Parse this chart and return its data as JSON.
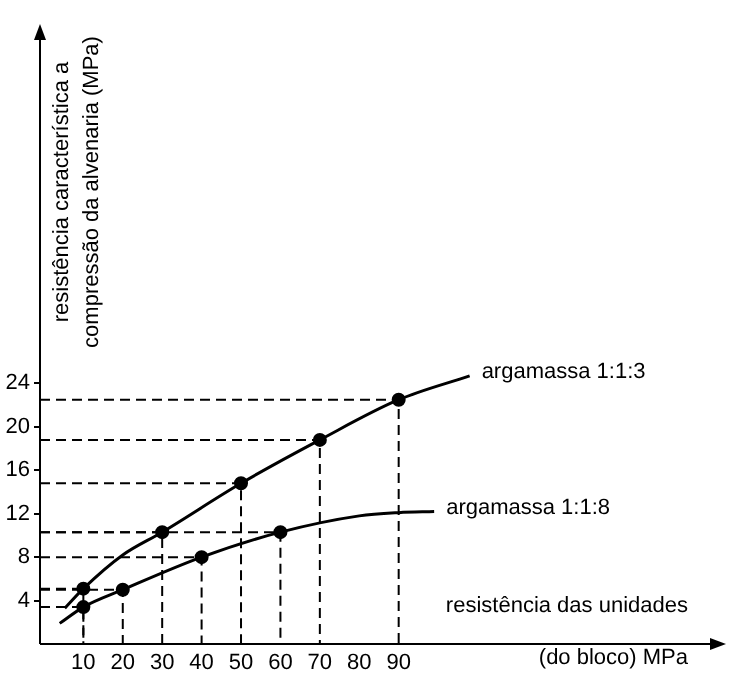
{
  "chart_data": {
    "type": "line",
    "xlabel": "resistência das unidades (do bloco) MPa",
    "ylabel": "resistência característica a compressão da alvenaria (MPa)",
    "xlim": [
      -1,
      170
    ],
    "ylim": [
      0,
      56
    ],
    "xticks": [
      10,
      20,
      30,
      40,
      50,
      60,
      70,
      80,
      90
    ],
    "yticks": [
      4,
      8,
      12,
      16,
      20,
      24
    ],
    "grid": false,
    "legend": false,
    "series": [
      {
        "name": "argamassa 1:1:3",
        "color": "#000000",
        "marker": "none",
        "x": [
          5.3,
          10,
          20,
          30,
          50,
          70,
          90,
          108
        ],
        "values": [
          3.3,
          5.1,
          8.2,
          10.3,
          14.8,
          18.8,
          22.5,
          24.7
        ]
      },
      {
        "name": "argamassa 1:1:8",
        "color": "#000000",
        "marker": "none",
        "x": [
          4,
          10,
          20,
          40,
          60,
          80,
          90,
          99
        ],
        "values": [
          1.9,
          3.4,
          5,
          8,
          10.3,
          11.8,
          12.1,
          12.2
        ]
      },
      {
        "type": "scatter",
        "color": "#000000",
        "marker": "circle",
        "x": [
          10,
          30,
          50,
          70,
          90,
          10,
          20,
          40,
          60
        ],
        "values": [
          5.1,
          10.3,
          14.8,
          18.8,
          22.5,
          3.4,
          5,
          8,
          10.3
        ]
      },
      {
        "color": "#000000",
        "marker": "none",
        "line_style": "dashed",
        "x": [
          -1,
          10,
          10
        ],
        "values": [
          5.1,
          5.1,
          0
        ]
      },
      {
        "color": "#000000",
        "marker": "none",
        "line_style": "dashed",
        "x": [
          -1,
          30,
          30
        ],
        "values": [
          10.3,
          10.3,
          0
        ]
      },
      {
        "color": "#000000",
        "marker": "none",
        "line_style": "dashed",
        "x": [
          -1,
          50,
          50
        ],
        "values": [
          14.8,
          14.8,
          0
        ]
      },
      {
        "color": "#000000",
        "marker": "none",
        "line_style": "dashed",
        "x": [
          -1,
          70,
          70
        ],
        "values": [
          18.8,
          18.8,
          0
        ]
      },
      {
        "color": "#000000",
        "marker": "none",
        "line_style": "dashed",
        "x": [
          -1,
          90,
          90
        ],
        "values": [
          22.5,
          22.5,
          0
        ]
      },
      {
        "color": "#000000",
        "marker": "none",
        "line_style": "dashed",
        "x": [
          -1,
          10,
          10
        ],
        "values": [
          3.4,
          3.4,
          0
        ]
      },
      {
        "color": "#000000",
        "marker": "none",
        "line_style": "dashed",
        "x": [
          -1,
          20,
          20
        ],
        "values": [
          5,
          5,
          0
        ]
      },
      {
        "color": "#000000",
        "marker": "none",
        "line_style": "dashed",
        "x": [
          -1,
          40,
          40
        ],
        "values": [
          8,
          8,
          0
        ]
      },
      {
        "color": "#000000",
        "marker": "none",
        "line_style": "dashed",
        "x": [
          -1,
          60,
          60
        ],
        "values": [
          10.3,
          10.3,
          0
        ]
      }
    ]
  }
}
